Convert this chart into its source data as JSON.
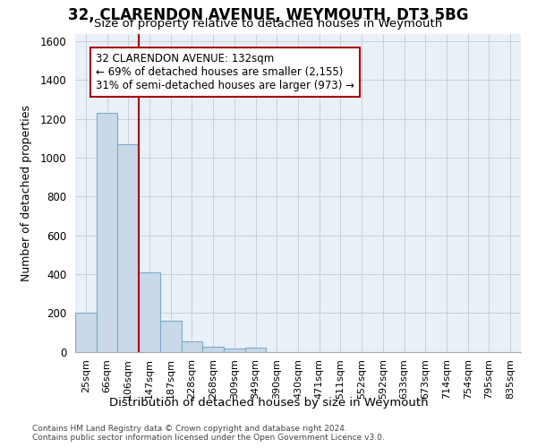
{
  "title": "32, CLARENDON AVENUE, WEYMOUTH, DT3 5BG",
  "subtitle": "Size of property relative to detached houses in Weymouth",
  "xlabel": "Distribution of detached houses by size in Weymouth",
  "ylabel": "Number of detached properties",
  "footer_line1": "Contains HM Land Registry data © Crown copyright and database right 2024.",
  "footer_line2": "Contains public sector information licensed under the Open Government Licence v3.0.",
  "categories": [
    "25sqm",
    "66sqm",
    "106sqm",
    "147sqm",
    "187sqm",
    "228sqm",
    "268sqm",
    "309sqm",
    "349sqm",
    "390sqm",
    "430sqm",
    "471sqm",
    "511sqm",
    "552sqm",
    "592sqm",
    "633sqm",
    "673sqm",
    "714sqm",
    "754sqm",
    "795sqm",
    "835sqm"
  ],
  "values": [
    200,
    1230,
    1070,
    410,
    160,
    55,
    25,
    18,
    20,
    0,
    0,
    0,
    0,
    0,
    0,
    0,
    0,
    0,
    0,
    0,
    0
  ],
  "bar_color": "#c9d9ea",
  "bar_edge_color": "#7aaac8",
  "ylim": [
    0,
    1640
  ],
  "yticks": [
    0,
    200,
    400,
    600,
    800,
    1000,
    1200,
    1400,
    1600
  ],
  "property_label": "32 CLARENDON AVENUE: 132sqm",
  "annotation_line1": "← 69% of detached houses are smaller (2,155)",
  "annotation_line2": "31% of semi-detached houses are larger (973) →",
  "vline_color": "#aa0000",
  "vline_x_index": 2.5,
  "grid_color": "#c8d0dc",
  "background_color": "#eaf0f8"
}
